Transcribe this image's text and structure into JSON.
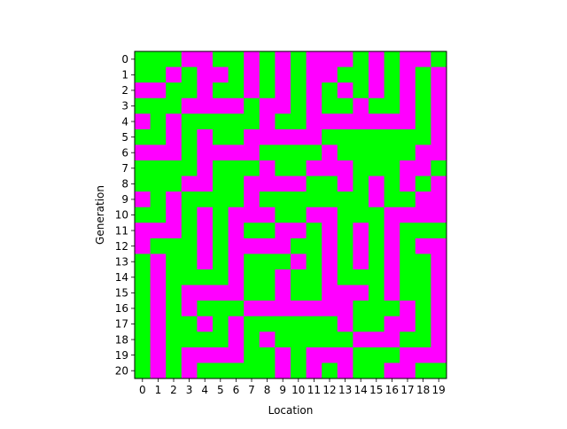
{
  "chart_data": {
    "type": "heatmap",
    "title": "",
    "xlabel": "Location",
    "ylabel": "Generation",
    "x_ticks": [
      "0",
      "1",
      "2",
      "3",
      "4",
      "5",
      "6",
      "7",
      "8",
      "9",
      "10",
      "11",
      "12",
      "13",
      "14",
      "15",
      "16",
      "17",
      "18",
      "19"
    ],
    "y_ticks": [
      "0",
      "1",
      "2",
      "3",
      "4",
      "5",
      "6",
      "7",
      "8",
      "9",
      "10",
      "11",
      "12",
      "13",
      "14",
      "15",
      "16",
      "17",
      "18",
      "19",
      "20"
    ],
    "colors": {
      "0": "#ff00ff",
      "1": "#00ff00"
    },
    "grid": [
      "11100110101000101001",
      "11010010101001101010",
      "00110110101010101010",
      "11100001001011011010",
      "01011111011000000010",
      "11010110000011111110",
      "00010000111101111100",
      "11110111011000111001",
      "11100110000110101010",
      "01011110111111101100",
      "11010100011001110000",
      "00010101100101010111",
      "01110100001101010100",
      "10110101110101010110",
      "10111101101101110110",
      "10100001101100010110",
      "10101110000000111010",
      "10110101111110110010",
      "10111101011111000110",
      "10100001101000111000",
      "10101111101010110011"
    ]
  }
}
